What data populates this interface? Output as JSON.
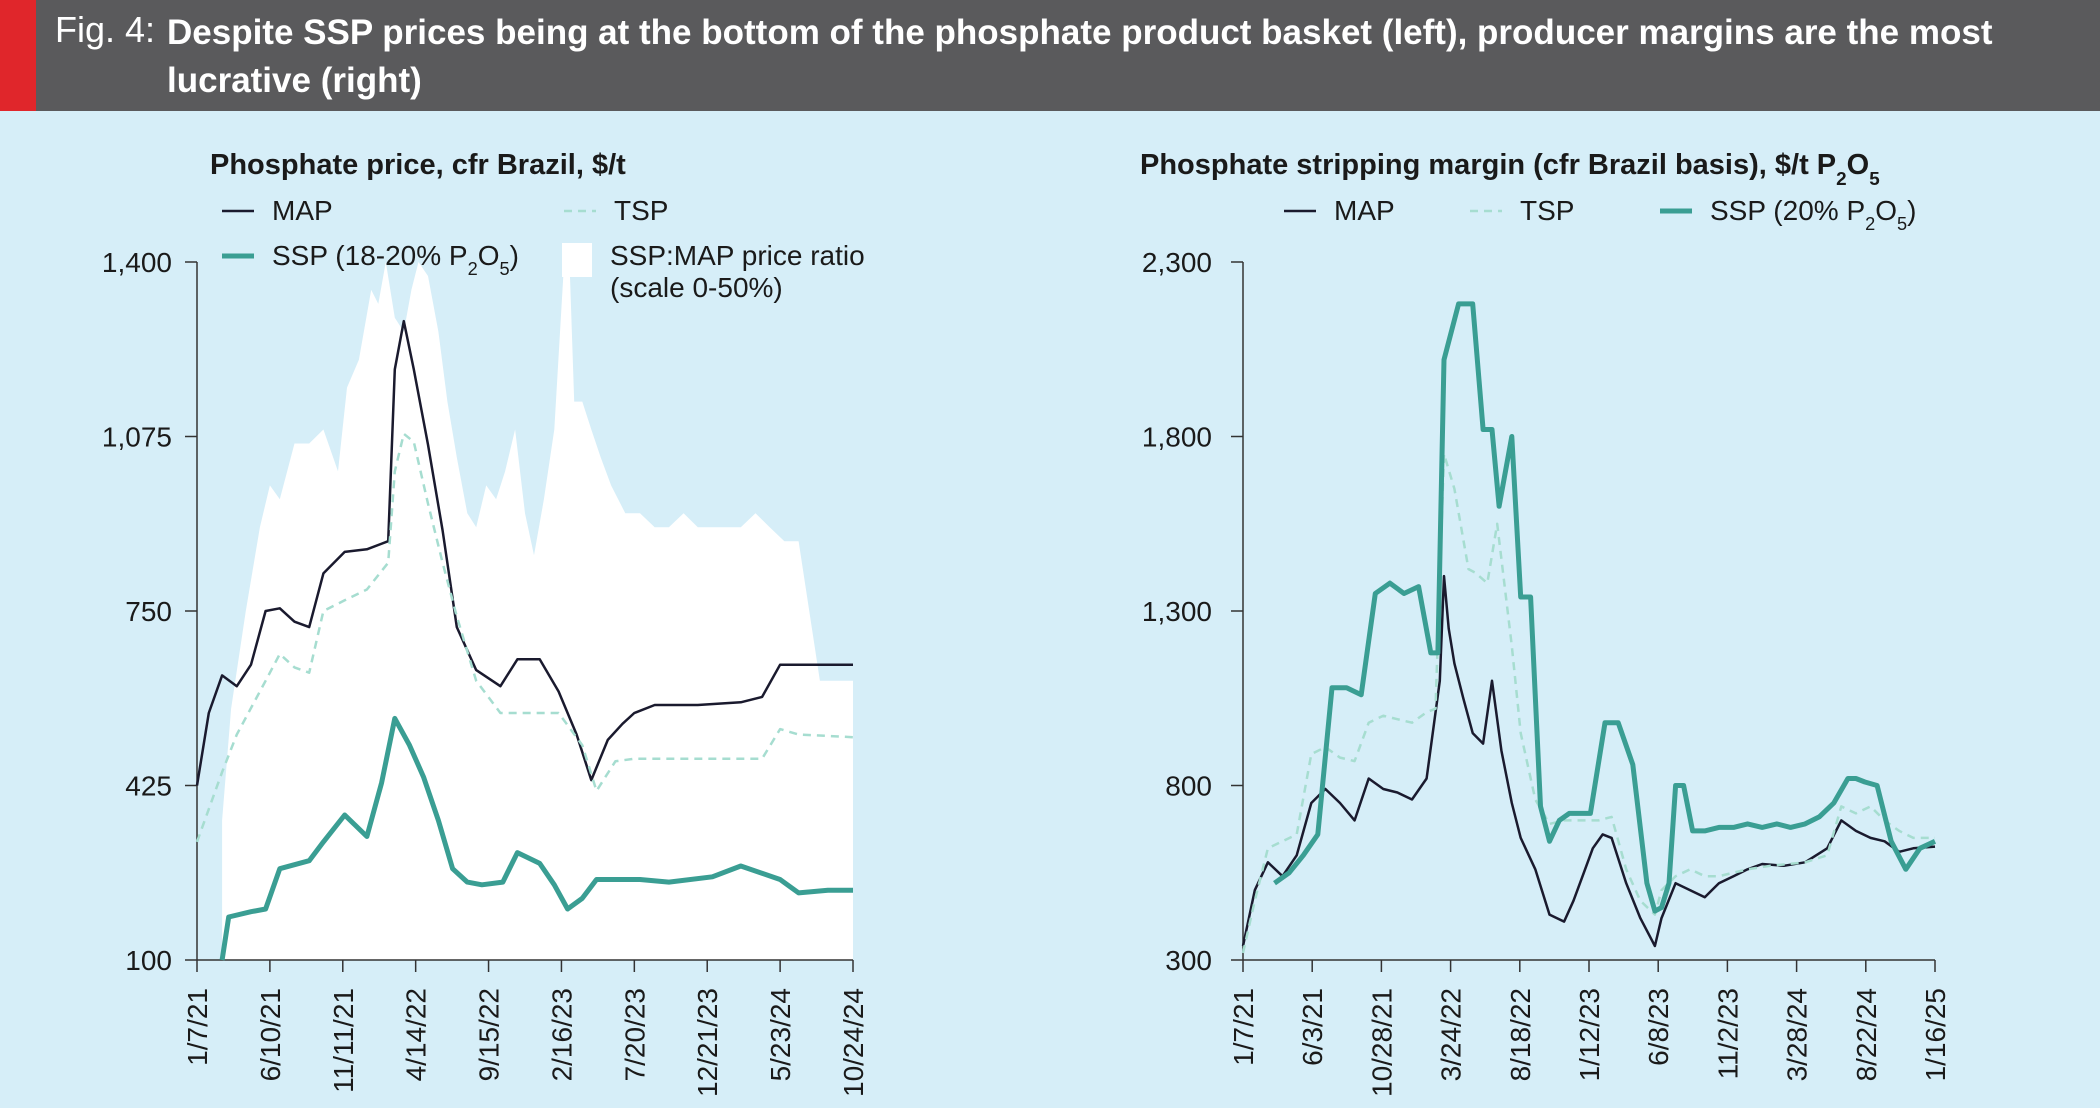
{
  "figure": {
    "label": "Fig. 4:",
    "title": "Despite SSP prices being at the bottom of the phosphate product basket (left), producer margins are the most lucrative (right)",
    "colors": {
      "header_bg": "#5a5a5c",
      "accent": "#e0262b",
      "page_bg": "#d6eef8",
      "map": "#1a1a2e",
      "tsp": "#a6ddd0",
      "ssp": "#3a9e93",
      "ratio_fill": "#ffffff"
    }
  },
  "chart_data": [
    {
      "type": "line",
      "title": "Phosphate price, cfr Brazil, $/t",
      "yticks": [
        "1,400",
        "1,075",
        "750",
        "425",
        "100"
      ],
      "ylim": [
        100,
        1400
      ],
      "x_labels": [
        "1/7/21",
        "6/10/21",
        "11/11/21",
        "4/14/22",
        "9/15/22",
        "2/16/23",
        "7/20/23",
        "12/21/23",
        "5/23/24",
        "10/24/24"
      ],
      "x_range": [
        "2021-01-07",
        "2024-10-24"
      ],
      "legend": [
        {
          "name": "MAP",
          "style": "solid-thin"
        },
        {
          "name": "TSP",
          "style": "dashed"
        },
        {
          "name": "SSP (18-20% P2O5)",
          "style": "solid-thick"
        },
        {
          "name": "SSP:MAP price ratio (scale 0-50%)",
          "style": "area"
        }
      ],
      "series": [
        {
          "name": "MAP",
          "x": [
            "2021-01-07",
            "2021-02-01",
            "2021-03-01",
            "2021-04-01",
            "2021-05-01",
            "2021-06-01",
            "2021-07-01",
            "2021-08-01",
            "2021-09-01",
            "2021-10-01",
            "2021-11-15",
            "2022-01-01",
            "2022-02-15",
            "2022-03-01",
            "2022-03-20",
            "2022-04-10",
            "2022-05-10",
            "2022-06-10",
            "2022-07-10",
            "2022-08-20",
            "2022-10-10",
            "2022-11-15",
            "2023-01-01",
            "2023-02-10",
            "2023-03-20",
            "2023-04-20",
            "2023-05-25",
            "2023-06-25",
            "2023-07-20",
            "2023-09-01",
            "2023-12-01",
            "2024-03-01",
            "2024-04-15",
            "2024-05-23",
            "2024-10-24"
          ],
          "values": [
            425,
            560,
            630,
            610,
            650,
            750,
            755,
            730,
            720,
            820,
            860,
            865,
            880,
            1200,
            1290,
            1200,
            1060,
            900,
            720,
            640,
            610,
            660,
            660,
            600,
            520,
            435,
            510,
            540,
            560,
            575,
            575,
            580,
            590,
            650,
            650
          ]
        },
        {
          "name": "TSP",
          "x": [
            "2021-01-07",
            "2021-03-01",
            "2021-04-01",
            "2021-06-01",
            "2021-07-01",
            "2021-08-01",
            "2021-09-01",
            "2021-10-01",
            "2021-11-15",
            "2022-01-01",
            "2022-02-15",
            "2022-03-01",
            "2022-03-20",
            "2022-04-10",
            "2022-05-10",
            "2022-06-10",
            "2022-07-10",
            "2022-08-20",
            "2022-10-10",
            "2022-11-15",
            "2023-02-10",
            "2023-04-01",
            "2023-05-01",
            "2023-06-10",
            "2023-07-20",
            "2023-09-01",
            "2023-12-01",
            "2024-03-01",
            "2024-04-15",
            "2024-05-23",
            "2024-07-01",
            "2024-10-24"
          ],
          "values": [
            320,
            450,
            520,
            620,
            670,
            645,
            635,
            750,
            770,
            790,
            840,
            1010,
            1080,
            1065,
            950,
            840,
            740,
            620,
            560,
            560,
            560,
            500,
            415,
            470,
            475,
            475,
            475,
            475,
            475,
            530,
            520,
            515
          ]
        },
        {
          "name": "SSP (18-20% P2O5)",
          "x": [
            "2021-03-01",
            "2021-03-15",
            "2021-05-01",
            "2021-06-01",
            "2021-07-01",
            "2021-09-01",
            "2021-10-01",
            "2021-11-15",
            "2022-01-01",
            "2022-02-01",
            "2022-03-01",
            "2022-04-01",
            "2022-05-01",
            "2022-06-01",
            "2022-07-01",
            "2022-08-01",
            "2022-09-01",
            "2022-10-15",
            "2022-11-15",
            "2023-01-01",
            "2023-02-01",
            "2023-03-01",
            "2023-04-01",
            "2023-05-01",
            "2023-06-01",
            "2023-08-01",
            "2023-10-01",
            "2024-01-01",
            "2024-03-01",
            "2024-05-23",
            "2024-07-01",
            "2024-09-01",
            "2024-10-24"
          ],
          "values": [
            100,
            180,
            190,
            195,
            270,
            285,
            320,
            370,
            330,
            430,
            550,
            500,
            440,
            360,
            270,
            245,
            240,
            245,
            300,
            280,
            240,
            195,
            215,
            250,
            250,
            250,
            245,
            255,
            275,
            250,
            225,
            230,
            230
          ]
        },
        {
          "name": "SSP:MAP price ratio (scale 0-50%)",
          "x": [
            "2021-03-01",
            "2021-03-20",
            "2021-04-20",
            "2021-05-20",
            "2021-06-10",
            "2021-07-01",
            "2021-08-01",
            "2021-09-01",
            "2021-10-01",
            "2021-11-01",
            "2021-11-20",
            "2021-12-15",
            "2022-01-10",
            "2022-01-25",
            "2022-02-10",
            "2022-03-01",
            "2022-03-20",
            "2022-04-05",
            "2022-04-20",
            "2022-05-10",
            "2022-06-01",
            "2022-06-20",
            "2022-07-10",
            "2022-08-01",
            "2022-08-20",
            "2022-09-10",
            "2022-10-01",
            "2022-10-20",
            "2022-11-10",
            "2022-12-01",
            "2022-12-20",
            "2023-01-10",
            "2023-02-01",
            "2023-02-20",
            "2023-03-05",
            "2023-03-15",
            "2023-04-01",
            "2023-04-20",
            "2023-05-10",
            "2023-06-01",
            "2023-07-01",
            "2023-08-01",
            "2023-09-01",
            "2023-10-01",
            "2023-11-01",
            "2023-12-01",
            "2024-01-01",
            "2024-02-01",
            "2024-03-01",
            "2024-04-01",
            "2024-05-01",
            "2024-06-01",
            "2024-07-01",
            "2024-08-15",
            "2024-09-01",
            "2024-10-24"
          ],
          "values": [
            10,
            18,
            25,
            31,
            34,
            33,
            37,
            37,
            38,
            35,
            41,
            43,
            48,
            47,
            50,
            46,
            45,
            48,
            50,
            49,
            45,
            40,
            36,
            32,
            31,
            34,
            33,
            35,
            38,
            32,
            29,
            33,
            38,
            49,
            50,
            40,
            40,
            38,
            36,
            34,
            32,
            32,
            31,
            31,
            32,
            31,
            31,
            31,
            31,
            32,
            31,
            30,
            30,
            20,
            20,
            20
          ]
        }
      ]
    },
    {
      "type": "line",
      "title": "Phosphate stripping margin (cfr Brazil basis), $/t P2O5",
      "yticks": [
        "2,300",
        "1,800",
        "1,300",
        "800",
        "300"
      ],
      "ylim": [
        300,
        2300
      ],
      "x_labels": [
        "1/7/21",
        "6/3/21",
        "10/28/21",
        "3/24/22",
        "8/18/22",
        "1/12/23",
        "6/8/23",
        "11/2/23",
        "3/28/24",
        "8/22/24",
        "1/16/25"
      ],
      "x_range": [
        "2021-01-07",
        "2025-01-16"
      ],
      "legend": [
        {
          "name": "MAP",
          "style": "solid-thin"
        },
        {
          "name": "TSP",
          "style": "dashed"
        },
        {
          "name": "SSP (20% P2O5)",
          "style": "solid-thick"
        }
      ],
      "series": [
        {
          "name": "MAP",
          "x": [
            "2021-01-07",
            "2021-02-01",
            "2021-03-01",
            "2021-04-01",
            "2021-05-01",
            "2021-06-01",
            "2021-07-01",
            "2021-08-01",
            "2021-09-01",
            "2021-10-01",
            "2021-11-01",
            "2021-12-01",
            "2022-01-01",
            "2022-02-01",
            "2022-03-01",
            "2022-03-10",
            "2022-03-20",
            "2022-04-01",
            "2022-04-20",
            "2022-05-10",
            "2022-06-01",
            "2022-06-20",
            "2022-07-10",
            "2022-08-01",
            "2022-08-20",
            "2022-09-20",
            "2022-10-20",
            "2022-11-20",
            "2022-12-10",
            "2023-01-01",
            "2023-01-20",
            "2023-02-10",
            "2023-03-01",
            "2023-04-01",
            "2023-05-01",
            "2023-06-01",
            "2023-06-15",
            "2023-07-15",
            "2023-08-15",
            "2023-09-15",
            "2023-10-15",
            "2023-11-15",
            "2023-12-15",
            "2024-01-15",
            "2024-03-01",
            "2024-04-15",
            "2024-06-01",
            "2024-07-01",
            "2024-08-01",
            "2024-09-01",
            "2024-10-01",
            "2024-11-01",
            "2024-12-01",
            "2025-01-16"
          ],
          "values": [
            340,
            500,
            580,
            540,
            600,
            750,
            790,
            750,
            700,
            820,
            790,
            780,
            760,
            820,
            1100,
            1400,
            1250,
            1150,
            1050,
            950,
            920,
            1100,
            900,
            750,
            650,
            560,
            430,
            410,
            470,
            550,
            620,
            660,
            650,
            520,
            420,
            340,
            420,
            520,
            500,
            480,
            520,
            540,
            560,
            575,
            570,
            580,
            620,
            700,
            670,
            650,
            640,
            610,
            620,
            625
          ]
        },
        {
          "name": "TSP",
          "x": [
            "2021-01-07",
            "2021-02-01",
            "2021-03-01",
            "2021-05-01",
            "2021-06-01",
            "2021-07-01",
            "2021-08-01",
            "2021-09-01",
            "2021-10-01",
            "2021-11-01",
            "2021-12-01",
            "2022-01-01",
            "2022-02-01",
            "2022-02-20",
            "2022-03-10",
            "2022-04-01",
            "2022-05-01",
            "2022-05-15",
            "2022-06-10",
            "2022-07-01",
            "2022-08-01",
            "2022-08-20",
            "2022-09-20",
            "2022-10-20",
            "2022-11-20",
            "2022-12-10",
            "2023-01-01",
            "2023-02-01",
            "2023-03-01",
            "2023-04-01",
            "2023-05-01",
            "2023-06-01",
            "2023-06-15",
            "2023-07-15",
            "2023-08-15",
            "2023-09-15",
            "2023-10-15",
            "2023-12-15",
            "2024-02-01",
            "2024-04-15",
            "2024-06-01",
            "2024-07-01",
            "2024-08-01",
            "2024-09-01",
            "2024-10-01",
            "2024-11-01",
            "2024-12-01",
            "2025-01-16"
          ],
          "values": [
            320,
            470,
            620,
            660,
            890,
            910,
            880,
            870,
            980,
            1000,
            990,
            980,
            1010,
            1020,
            1750,
            1650,
            1420,
            1410,
            1380,
            1550,
            1200,
            950,
            760,
            690,
            700,
            700,
            700,
            700,
            710,
            560,
            470,
            430,
            500,
            540,
            560,
            540,
            540,
            560,
            570,
            580,
            600,
            740,
            720,
            740,
            700,
            670,
            650,
            650
          ]
        },
        {
          "name": "SSP (20% P2O5)",
          "x": [
            "2021-03-15",
            "2021-04-15",
            "2021-05-15",
            "2021-06-15",
            "2021-07-15",
            "2021-08-15",
            "2021-09-15",
            "2021-10-15",
            "2021-11-15",
            "2021-12-15",
            "2022-01-15",
            "2022-02-10",
            "2022-02-25",
            "2022-03-10",
            "2022-04-10",
            "2022-05-10",
            "2022-06-01",
            "2022-06-20",
            "2022-07-05",
            "2022-08-01",
            "2022-08-20",
            "2022-09-10",
            "2022-10-01",
            "2022-10-20",
            "2022-11-10",
            "2022-12-01",
            "2023-01-15",
            "2023-02-15",
            "2023-03-15",
            "2023-04-15",
            "2023-05-15",
            "2023-06-01",
            "2023-06-15",
            "2023-07-01",
            "2023-07-15",
            "2023-08-01",
            "2023-08-20",
            "2023-09-15",
            "2023-10-15",
            "2023-11-15",
            "2023-12-15",
            "2024-01-15",
            "2024-02-15",
            "2024-03-15",
            "2024-04-15",
            "2024-05-15",
            "2024-06-15",
            "2024-07-15",
            "2024-08-01",
            "2024-08-20",
            "2024-09-15",
            "2024-10-15",
            "2024-11-15",
            "2024-12-15",
            "2025-01-16"
          ],
          "values": [
            520,
            550,
            600,
            660,
            1080,
            1080,
            1060,
            1350,
            1380,
            1350,
            1370,
            1180,
            1180,
            2020,
            2180,
            2180,
            1820,
            1820,
            1600,
            1800,
            1340,
            1340,
            740,
            640,
            700,
            720,
            720,
            980,
            980,
            860,
            520,
            440,
            450,
            520,
            800,
            800,
            670,
            670,
            680,
            680,
            690,
            680,
            690,
            680,
            690,
            710,
            750,
            820,
            820,
            810,
            800,
            640,
            560,
            620,
            640
          ]
        }
      ]
    }
  ]
}
